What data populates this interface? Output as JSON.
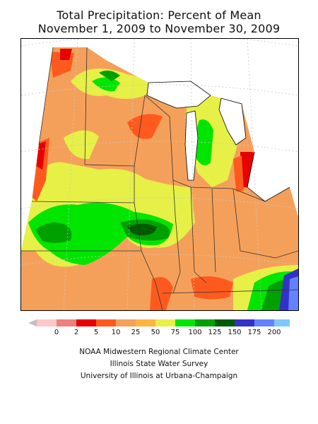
{
  "title": {
    "line1": "Total Precipitation: Percent of Mean",
    "line2": "November 1, 2009 to November 30, 2009"
  },
  "legend": {
    "ticks": [
      "0",
      "2",
      "5",
      "10",
      "25",
      "50",
      "75",
      "100",
      "125",
      "150",
      "175",
      "200"
    ],
    "colors": [
      "#ffc8c8",
      "#f08080",
      "#e60000",
      "#ff5a1e",
      "#f5a05a",
      "#ffb43c",
      "#e6f046",
      "#00e600",
      "#00a000",
      "#005a00",
      "#3232c8",
      "#6482ff",
      "#7ec8ff"
    ]
  },
  "credits": {
    "line1": "NOAA Midwestern Regional Climate Center",
    "line2": "Illinois State Water Survey",
    "line3": "University of Illinois at Urbana-Champaign"
  }
}
